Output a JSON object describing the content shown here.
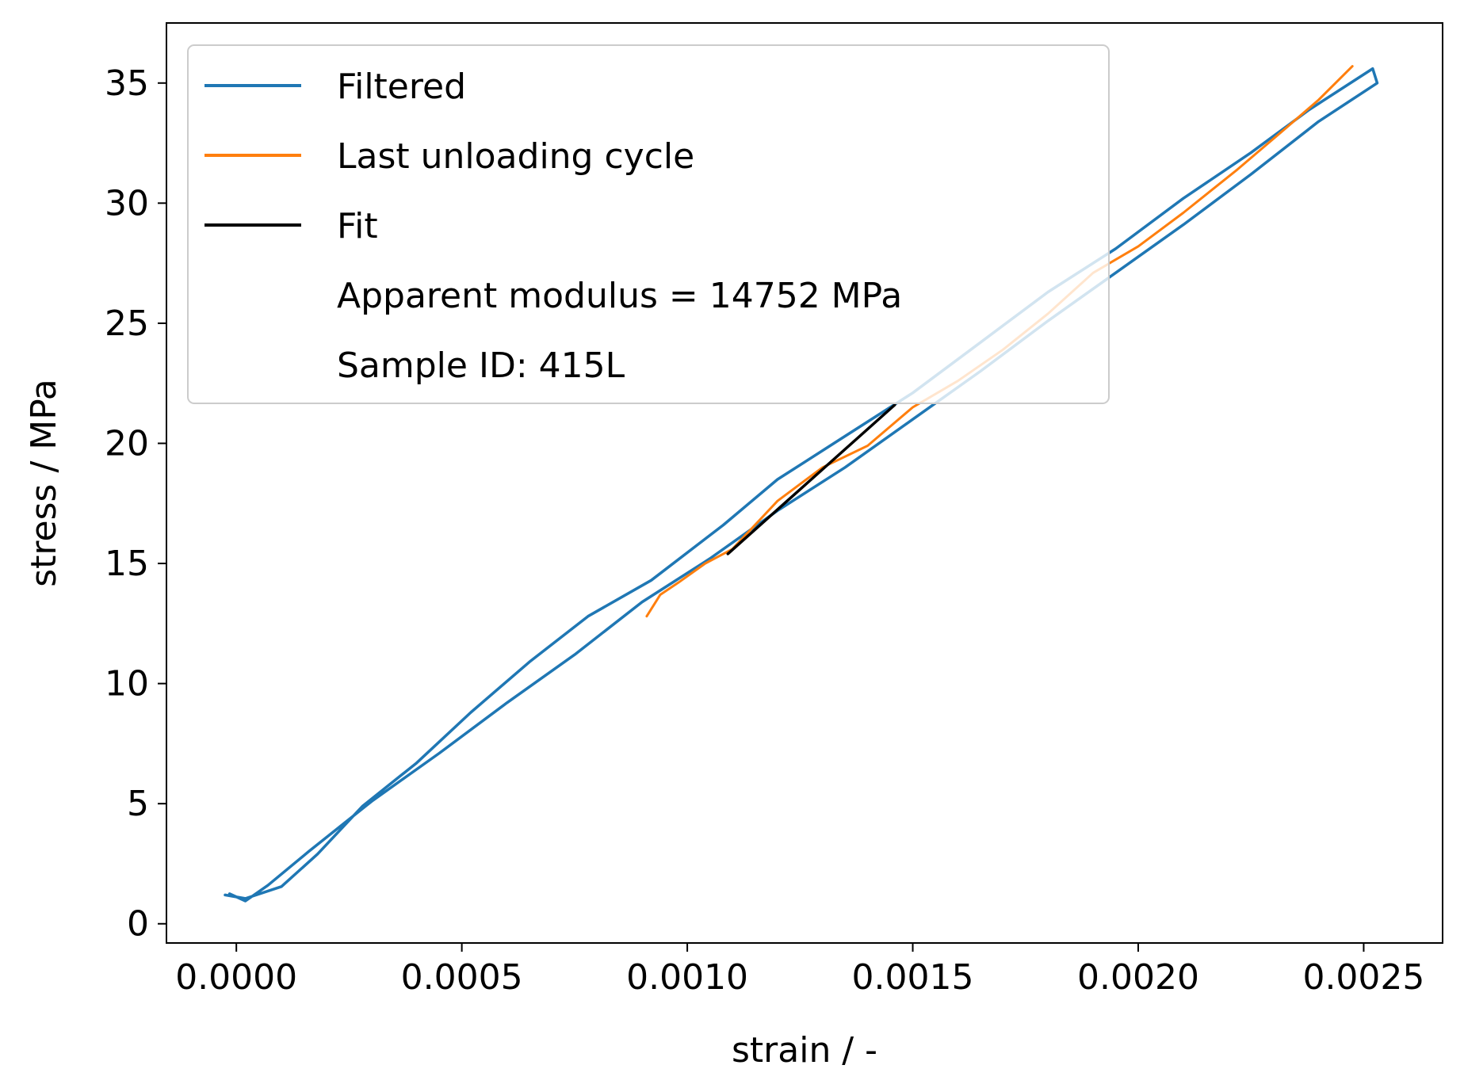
{
  "chart_data": {
    "type": "line",
    "title": "",
    "xlabel": "strain / -",
    "ylabel": "stress / MPa",
    "xlim": [
      -0.000155,
      0.002675
    ],
    "ylim": [
      -0.8,
      37.5
    ],
    "xticks": [
      0.0,
      0.0005,
      0.001,
      0.0015,
      0.002,
      0.0025
    ],
    "xtick_labels": [
      "0.0000",
      "0.0005",
      "0.0010",
      "0.0015",
      "0.0020",
      "0.0025"
    ],
    "yticks": [
      0,
      5,
      10,
      15,
      20,
      25,
      30,
      35
    ],
    "ytick_labels": [
      "0",
      "5",
      "10",
      "15",
      "20",
      "25",
      "30",
      "35"
    ],
    "grid": false,
    "legend_position": "upper-left",
    "legend": [
      {
        "label": "Filtered",
        "color": "#1f77b4",
        "marker": "line"
      },
      {
        "label": "Last unloading cycle",
        "color": "#ff7f0e",
        "marker": "line"
      },
      {
        "label": "Fit",
        "color": "#000000",
        "marker": "line"
      },
      {
        "label": "Apparent modulus = 14752 MPa",
        "color": "",
        "marker": "none"
      },
      {
        "label": "Sample ID: 415L",
        "color": "",
        "marker": "none"
      }
    ],
    "series": [
      {
        "name": "Filtered",
        "color": "#1f77b4",
        "points": [
          [
            -2.5e-05,
            1.2
          ],
          [
            2e-05,
            1.05
          ],
          [
            0.0001,
            1.55
          ],
          [
            0.00018,
            2.9
          ],
          [
            0.00028,
            4.9
          ],
          [
            0.0004,
            6.7
          ],
          [
            0.00052,
            8.8
          ],
          [
            0.00065,
            10.9
          ],
          [
            0.00078,
            12.8
          ],
          [
            0.00092,
            14.3
          ],
          [
            0.00108,
            16.6
          ],
          [
            0.0012,
            18.5
          ],
          [
            0.00135,
            20.3
          ],
          [
            0.0015,
            22.1
          ],
          [
            0.00165,
            24.2
          ],
          [
            0.0018,
            26.3
          ],
          [
            0.00195,
            28.1
          ],
          [
            0.0021,
            30.2
          ],
          [
            0.00225,
            32.1
          ],
          [
            0.00238,
            33.9
          ],
          [
            0.00252,
            35.6
          ],
          [
            0.00253,
            35.0
          ],
          [
            0.0024,
            33.4
          ],
          [
            0.00225,
            31.2
          ],
          [
            0.0021,
            29.1
          ],
          [
            0.00195,
            27.1
          ],
          [
            0.0018,
            25.1
          ],
          [
            0.00165,
            23.0
          ],
          [
            0.0015,
            21.0
          ],
          [
            0.00135,
            19.0
          ],
          [
            0.0012,
            17.2
          ],
          [
            0.00105,
            15.2
          ],
          [
            0.0009,
            13.4
          ],
          [
            0.00075,
            11.2
          ],
          [
            0.0006,
            9.2
          ],
          [
            0.00045,
            7.1
          ],
          [
            0.0003,
            5.1
          ],
          [
            0.00016,
            3.0
          ],
          [
            7e-05,
            1.6
          ],
          [
            2e-05,
            0.95
          ],
          [
            -1.5e-05,
            1.25
          ]
        ]
      },
      {
        "name": "Last unloading cycle",
        "color": "#ff7f0e",
        "points": [
          [
            0.002475,
            35.7
          ],
          [
            0.0024,
            34.3
          ],
          [
            0.00232,
            33.0
          ],
          [
            0.00222,
            31.4
          ],
          [
            0.0021,
            29.6
          ],
          [
            0.002,
            28.2
          ],
          [
            0.0019,
            27.1
          ],
          [
            0.0018,
            25.4
          ],
          [
            0.0017,
            23.9
          ],
          [
            0.0016,
            22.6
          ],
          [
            0.0015,
            21.5
          ],
          [
            0.0014,
            19.9
          ],
          [
            0.0013,
            19.0
          ],
          [
            0.0012,
            17.6
          ],
          [
            0.0011,
            15.6
          ],
          [
            0.00104,
            15.0
          ],
          [
            0.00098,
            14.2
          ],
          [
            0.00094,
            13.7
          ],
          [
            0.00091,
            12.8
          ]
        ]
      },
      {
        "name": "Fit",
        "color": "#000000",
        "points": [
          [
            0.00109,
            15.4
          ],
          [
            0.00146,
            21.6
          ]
        ]
      }
    ]
  }
}
